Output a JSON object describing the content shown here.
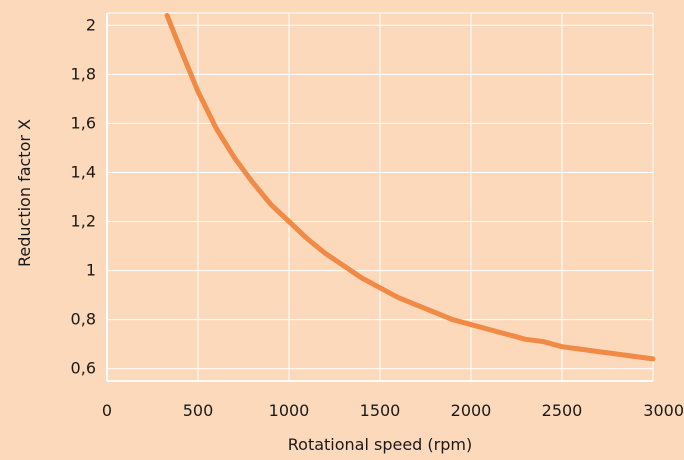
{
  "chart_data": {
    "type": "line",
    "title": "",
    "xlabel": "Rotational speed (rpm)",
    "ylabel": "Reduction factor X",
    "xlim": [
      0,
      3000
    ],
    "ylim": [
      0.55,
      2.05
    ],
    "x_ticks": [
      0,
      500,
      1000,
      1500,
      2000,
      2500,
      3000
    ],
    "x_tick_labels": [
      "0",
      "500",
      "1000",
      "1500",
      "2000",
      "2500",
      "3000"
    ],
    "y_ticks": [
      0.6,
      0.8,
      1.0,
      1.2,
      1.4,
      1.6,
      1.8,
      2.0
    ],
    "y_tick_labels": [
      "0,6",
      "0,8",
      "1",
      "1,2",
      "1,4",
      "1,6",
      "1,8",
      "2"
    ],
    "grid": true,
    "legend": "none",
    "colors": {
      "background": "#fdd9bc",
      "grid": "#ffffff",
      "axis": "#ffffff",
      "line": "#f08a45"
    },
    "series": [
      {
        "x": [
          330,
          400,
          500,
          600,
          700,
          800,
          900,
          1000,
          1100,
          1200,
          1300,
          1400,
          1500,
          1600,
          1700,
          1800,
          1900,
          2000,
          2100,
          2200,
          2300,
          2400,
          2500,
          2600,
          2700,
          2800,
          2900,
          3000
        ],
        "y": [
          2.04,
          1.91,
          1.73,
          1.58,
          1.46,
          1.36,
          1.27,
          1.2,
          1.13,
          1.07,
          1.02,
          0.97,
          0.93,
          0.89,
          0.86,
          0.83,
          0.8,
          0.78,
          0.76,
          0.74,
          0.72,
          0.71,
          0.69,
          0.68,
          0.67,
          0.66,
          0.65,
          0.64
        ]
      }
    ]
  }
}
